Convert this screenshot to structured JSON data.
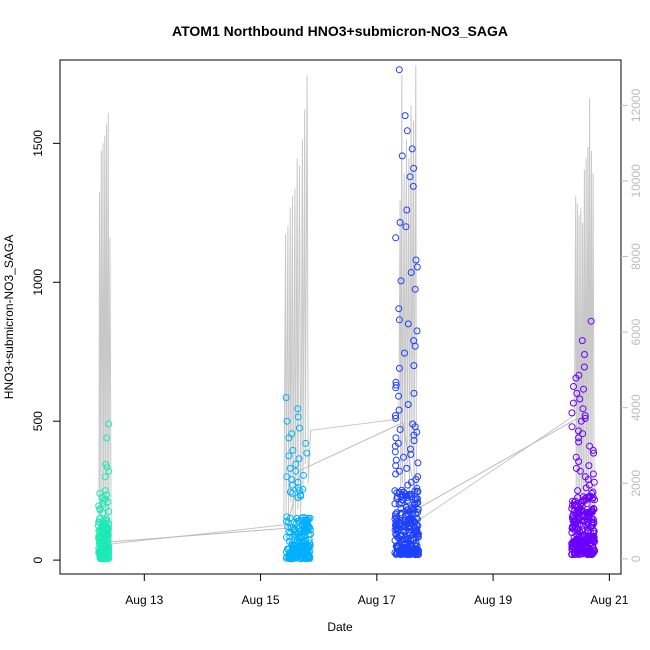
{
  "chart_data": {
    "type": "scatter",
    "title": "ATOM1 Northbound HNO3+submicron-NO3_SAGA",
    "xlabel": "Date",
    "ylabel": "HNO3+submicron-NO3_SAGA",
    "x_tick_labels": [
      "Aug 13",
      "Aug 15",
      "Aug 17",
      "Aug 19",
      "Aug 21"
    ],
    "x_ticks_days": [
      13,
      15,
      17,
      19,
      21
    ],
    "xlim_days": [
      11.55,
      21.2
    ],
    "y_tick_labels": [
      "0",
      "500",
      "1000",
      "1500"
    ],
    "y_ticks": [
      0,
      500,
      1000,
      1500
    ],
    "ylim": [
      -50,
      1800
    ],
    "right_axis": {
      "tick_labels": [
        "0",
        "2000",
        "4000",
        "6000",
        "8000",
        "10000",
        "12000"
      ],
      "ticks": [
        0,
        2000,
        4000,
        6000,
        8000,
        10000,
        12000
      ],
      "ylim": [
        -400,
        13200
      ],
      "color": "#bdbdbd",
      "line_color": "#c8c8c8",
      "line_points": [
        {
          "d": 12.22,
          "v": 800
        },
        {
          "d": 12.23,
          "v": 9700
        },
        {
          "d": 12.24,
          "v": 1200
        },
        {
          "d": 12.26,
          "v": 10800
        },
        {
          "d": 12.27,
          "v": 900
        },
        {
          "d": 12.29,
          "v": 11000
        },
        {
          "d": 12.3,
          "v": 1500
        },
        {
          "d": 12.32,
          "v": 11200
        },
        {
          "d": 12.33,
          "v": 700
        },
        {
          "d": 12.35,
          "v": 11500
        },
        {
          "d": 12.36,
          "v": 1100
        },
        {
          "d": 12.38,
          "v": 11800
        },
        {
          "d": 12.39,
          "v": 500
        },
        {
          "d": 12.41,
          "v": 8500
        },
        {
          "d": 12.43,
          "v": 300
        },
        {
          "d": 12.45,
          "v": 400
        },
        {
          "d": 15.4,
          "v": 900
        },
        {
          "d": 15.43,
          "v": 8600
        },
        {
          "d": 15.44,
          "v": 1200
        },
        {
          "d": 15.47,
          "v": 8800
        },
        {
          "d": 15.48,
          "v": 800
        },
        {
          "d": 15.51,
          "v": 9300
        },
        {
          "d": 15.52,
          "v": 1500
        },
        {
          "d": 15.55,
          "v": 9600
        },
        {
          "d": 15.56,
          "v": 1000
        },
        {
          "d": 15.59,
          "v": 9800
        },
        {
          "d": 15.6,
          "v": 700
        },
        {
          "d": 15.63,
          "v": 10600
        },
        {
          "d": 15.64,
          "v": 1300
        },
        {
          "d": 15.67,
          "v": 10400
        },
        {
          "d": 15.69,
          "v": 900
        },
        {
          "d": 15.72,
          "v": 11100
        },
        {
          "d": 15.73,
          "v": 1800
        },
        {
          "d": 15.76,
          "v": 11900
        },
        {
          "d": 15.77,
          "v": 2500
        },
        {
          "d": 15.8,
          "v": 12800
        },
        {
          "d": 15.82,
          "v": 2000
        },
        {
          "d": 15.86,
          "v": 3400
        },
        {
          "d": 17.38,
          "v": 3700
        },
        {
          "d": 17.4,
          "v": 9500
        },
        {
          "d": 17.41,
          "v": 1500
        },
        {
          "d": 17.43,
          "v": 12800
        },
        {
          "d": 17.44,
          "v": 2000
        },
        {
          "d": 17.47,
          "v": 10200
        },
        {
          "d": 17.48,
          "v": 1200
        },
        {
          "d": 17.51,
          "v": 11100
        },
        {
          "d": 17.52,
          "v": 2400
        },
        {
          "d": 17.55,
          "v": 10600
        },
        {
          "d": 17.56,
          "v": 900
        },
        {
          "d": 17.59,
          "v": 12000
        },
        {
          "d": 17.6,
          "v": 2800
        },
        {
          "d": 17.63,
          "v": 11600
        },
        {
          "d": 17.64,
          "v": 1400
        },
        {
          "d": 17.67,
          "v": 13050
        },
        {
          "d": 17.68,
          "v": 1800
        },
        {
          "d": 17.7,
          "v": 1000
        },
        {
          "d": 20.4,
          "v": 3800
        },
        {
          "d": 20.42,
          "v": 9600
        },
        {
          "d": 20.43,
          "v": 1500
        },
        {
          "d": 20.45,
          "v": 9400
        },
        {
          "d": 20.46,
          "v": 800
        },
        {
          "d": 20.48,
          "v": 9100
        },
        {
          "d": 20.49,
          "v": 1200
        },
        {
          "d": 20.51,
          "v": 9300
        },
        {
          "d": 20.52,
          "v": 900
        },
        {
          "d": 20.54,
          "v": 8900
        },
        {
          "d": 20.55,
          "v": 1600
        },
        {
          "d": 20.57,
          "v": 10300
        },
        {
          "d": 20.58,
          "v": 700
        },
        {
          "d": 20.6,
          "v": 10600
        },
        {
          "d": 20.61,
          "v": 1800
        },
        {
          "d": 20.63,
          "v": 10900
        },
        {
          "d": 20.64,
          "v": 1100
        },
        {
          "d": 20.66,
          "v": 12200
        },
        {
          "d": 20.67,
          "v": 2000
        },
        {
          "d": 20.69,
          "v": 10800
        },
        {
          "d": 20.7,
          "v": 1300
        },
        {
          "d": 20.72,
          "v": 10200
        },
        {
          "d": 20.74,
          "v": 800
        }
      ]
    },
    "clusters": [
      {
        "center_day": 12.3,
        "spread_days": 0.18,
        "color": "#1de9b6",
        "n": 160,
        "base_min": 5,
        "base_max": 150,
        "extra": [
          490,
          440,
          345,
          335,
          320,
          300,
          250,
          240,
          235,
          225,
          220,
          215,
          210,
          200,
          195,
          190,
          185,
          180,
          175,
          170
        ]
      },
      {
        "center_day": 15.65,
        "spread_days": 0.42,
        "color": "#00b0ff",
        "n": 180,
        "base_min": 5,
        "base_max": 160,
        "extra": [
          585,
          545,
          515,
          500,
          475,
          455,
          440,
          420,
          395,
          385,
          375,
          365,
          345,
          330,
          320,
          305,
          300,
          290,
          280,
          270,
          260,
          255,
          250,
          245,
          240,
          235,
          230,
          225
        ]
      },
      {
        "center_day": 17.52,
        "spread_days": 0.42,
        "color": "#1e40ff",
        "n": 240,
        "base_min": 20,
        "base_max": 260,
        "extra": [
          1765,
          1600,
          1545,
          1480,
          1455,
          1410,
          1380,
          1345,
          1260,
          1215,
          1200,
          1160,
          1080,
          1055,
          1035,
          1005,
          975,
          905,
          865,
          850,
          825,
          790,
          770,
          745,
          700,
          690,
          640,
          630,
          620,
          600,
          590,
          560,
          540,
          520,
          510,
          490,
          480,
          470,
          460,
          450,
          440,
          430,
          420,
          410,
          400,
          390,
          380,
          370,
          360,
          350,
          340,
          330,
          320,
          310,
          300,
          290,
          280,
          270
        ]
      },
      {
        "center_day": 20.55,
        "spread_days": 0.4,
        "color": "#6a00ff",
        "n": 250,
        "base_min": 20,
        "base_max": 230,
        "extra": [
          860,
          790,
          740,
          695,
          665,
          655,
          625,
          615,
          600,
          580,
          565,
          545,
          530,
          520,
          510,
          500,
          480,
          465,
          455,
          440,
          425,
          410,
          395,
          385,
          370,
          355,
          340,
          330,
          320,
          310,
          300,
          290,
          280,
          270,
          260,
          250,
          245,
          240
        ]
      }
    ],
    "connector_points": [
      {
        "d": 12.4,
        "v": 65
      },
      {
        "d": 15.45,
        "v": 115
      },
      {
        "d": 15.7,
        "v": 325
      },
      {
        "d": 17.45,
        "v": 495
      },
      {
        "d": 17.7,
        "v": 185
      },
      {
        "d": 20.45,
        "v": 510
      }
    ]
  }
}
